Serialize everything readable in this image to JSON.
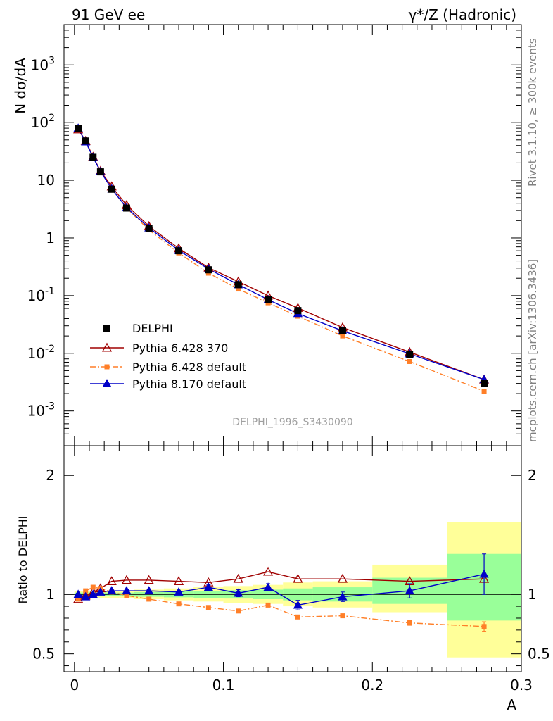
{
  "header": {
    "left": "91 GeV ee",
    "right": "γ*/Z (Hadronic)"
  },
  "side_text": {
    "top": "Rivet 3.1.10, ≥ 300k events",
    "bottom": "mcplots.cern.ch [arXiv:1306.3436]"
  },
  "watermark": "DELPHI_1996_S3430090",
  "colors": {
    "data": "#000000",
    "p6_370": "#a00000",
    "p6_def": "#ff7f28",
    "p8_def": "#0000c8",
    "band_yellow": "#ffff99",
    "band_green": "#99ff99"
  },
  "chart_data": [
    {
      "type": "line",
      "ylabel": "N dσ/dA",
      "xlabel": "",
      "log_y": true,
      "xlim": [
        -0.007,
        0.3
      ],
      "ylim": [
        0.00025,
        5000
      ],
      "ytick_labels": [
        "10^-3",
        "10^-2",
        "10^-1",
        "1",
        "10",
        "10^2",
        "10^3"
      ],
      "legend": {
        "placement": "lower-left",
        "entries": [
          "DELPHI",
          "Pythia 6.428 370",
          "Pythia 6.428 default",
          "Pythia 8.170 default"
        ]
      },
      "x": [
        0.0025,
        0.0075,
        0.0125,
        0.0175,
        0.025,
        0.035,
        0.05,
        0.07,
        0.09,
        0.11,
        0.13,
        0.15,
        0.18,
        0.225,
        0.275
      ],
      "series": [
        {
          "name": "DELPHI",
          "style": "data",
          "values": [
            80,
            48,
            25,
            14,
            7.0,
            3.3,
            1.45,
            0.6,
            0.28,
            0.155,
            0.085,
            0.055,
            0.025,
            0.0095,
            0.003
          ]
        },
        {
          "name": "Pythia 6.428 370",
          "style": "p6_370",
          "values": [
            76,
            48,
            25.5,
            14.5,
            7.8,
            3.7,
            1.6,
            0.66,
            0.305,
            0.175,
            0.1,
            0.061,
            0.028,
            0.0105,
            0.0035
          ]
        },
        {
          "name": "Pythia 6.428 default",
          "style": "p6_def",
          "values": [
            77,
            48.5,
            25.5,
            14.5,
            7.1,
            3.3,
            1.38,
            0.55,
            0.245,
            0.13,
            0.075,
            0.044,
            0.02,
            0.0072,
            0.0022
          ]
        },
        {
          "name": "Pythia 8.170 default",
          "style": "p8_def",
          "values": [
            80,
            46.5,
            25,
            14.2,
            7.1,
            3.35,
            1.5,
            0.61,
            0.29,
            0.155,
            0.085,
            0.049,
            0.0245,
            0.0098,
            0.0035
          ]
        }
      ]
    },
    {
      "type": "line",
      "ylabel": "Ratio to DELPHI",
      "xlabel": "A",
      "xlim": [
        -0.007,
        0.3
      ],
      "ylim": [
        0.35,
        2.25
      ],
      "yticks": [
        0.5,
        1,
        2
      ],
      "xticks": [
        0,
        0.1,
        0.2,
        0.3
      ],
      "xtick_labels": [
        "0",
        "0.1",
        "0.2",
        "0.3"
      ],
      "ytick_labels": [
        "0.5",
        "1",
        "2"
      ],
      "bands": {
        "bins": [
          [
            0,
            0.005
          ],
          [
            0.005,
            0.01
          ],
          [
            0.01,
            0.015
          ],
          [
            0.015,
            0.02
          ],
          [
            0.02,
            0.03
          ],
          [
            0.03,
            0.04
          ],
          [
            0.04,
            0.06
          ],
          [
            0.06,
            0.08
          ],
          [
            0.08,
            0.1
          ],
          [
            0.1,
            0.12
          ],
          [
            0.12,
            0.14
          ],
          [
            0.14,
            0.16
          ],
          [
            0.16,
            0.2
          ],
          [
            0.2,
            0.25
          ],
          [
            0.25,
            0.3
          ]
        ],
        "yellow": [
          [
            0.97,
            1.03
          ],
          [
            0.97,
            1.03
          ],
          [
            0.97,
            1.03
          ],
          [
            0.97,
            1.03
          ],
          [
            0.97,
            1.03
          ],
          [
            0.97,
            1.03
          ],
          [
            0.96,
            1.04
          ],
          [
            0.95,
            1.05
          ],
          [
            0.94,
            1.06
          ],
          [
            0.93,
            1.07
          ],
          [
            0.92,
            1.08
          ],
          [
            0.9,
            1.1
          ],
          [
            0.89,
            1.11
          ],
          [
            0.85,
            1.25
          ],
          [
            0.47,
            1.61
          ]
        ],
        "green": [
          [
            0.985,
            1.015
          ],
          [
            0.985,
            1.015
          ],
          [
            0.985,
            1.015
          ],
          [
            0.985,
            1.015
          ],
          [
            0.985,
            1.015
          ],
          [
            0.985,
            1.015
          ],
          [
            0.98,
            1.02
          ],
          [
            0.975,
            1.025
          ],
          [
            0.97,
            1.03
          ],
          [
            0.965,
            1.035
          ],
          [
            0.96,
            1.04
          ],
          [
            0.95,
            1.05
          ],
          [
            0.94,
            1.06
          ],
          [
            0.92,
            1.14
          ],
          [
            0.78,
            1.34
          ]
        ]
      },
      "series": [
        {
          "name": "Pythia 6.428 370",
          "style": "p6_370",
          "values": [
            0.96,
            0.99,
            1.02,
            1.05,
            1.11,
            1.12,
            1.12,
            1.11,
            1.1,
            1.13,
            1.19,
            1.13,
            1.13,
            1.11,
            1.13
          ]
        },
        {
          "name": "Pythia 6.428 default",
          "style": "p6_def",
          "values": [
            0.96,
            1.03,
            1.06,
            1.05,
            1.02,
            0.99,
            0.96,
            0.92,
            0.89,
            0.86,
            0.91,
            0.81,
            0.82,
            0.76,
            0.73
          ],
          "errors": [
            0.01,
            0.01,
            0.01,
            0.01,
            0.01,
            0.01,
            0.01,
            0.01,
            0.01,
            0.01,
            0.01,
            0.01,
            0.015,
            0.02,
            0.04
          ]
        },
        {
          "name": "Pythia 8.170 default",
          "style": "p8_def",
          "values": [
            1.0,
            0.98,
            1.0,
            1.02,
            1.03,
            1.03,
            1.03,
            1.02,
            1.06,
            1.01,
            1.06,
            0.91,
            0.98,
            1.03,
            1.17
          ],
          "errors": [
            0.01,
            0.01,
            0.01,
            0.01,
            0.01,
            0.01,
            0.01,
            0.015,
            0.02,
            0.03,
            0.03,
            0.04,
            0.04,
            0.06,
            0.17
          ]
        }
      ]
    }
  ]
}
